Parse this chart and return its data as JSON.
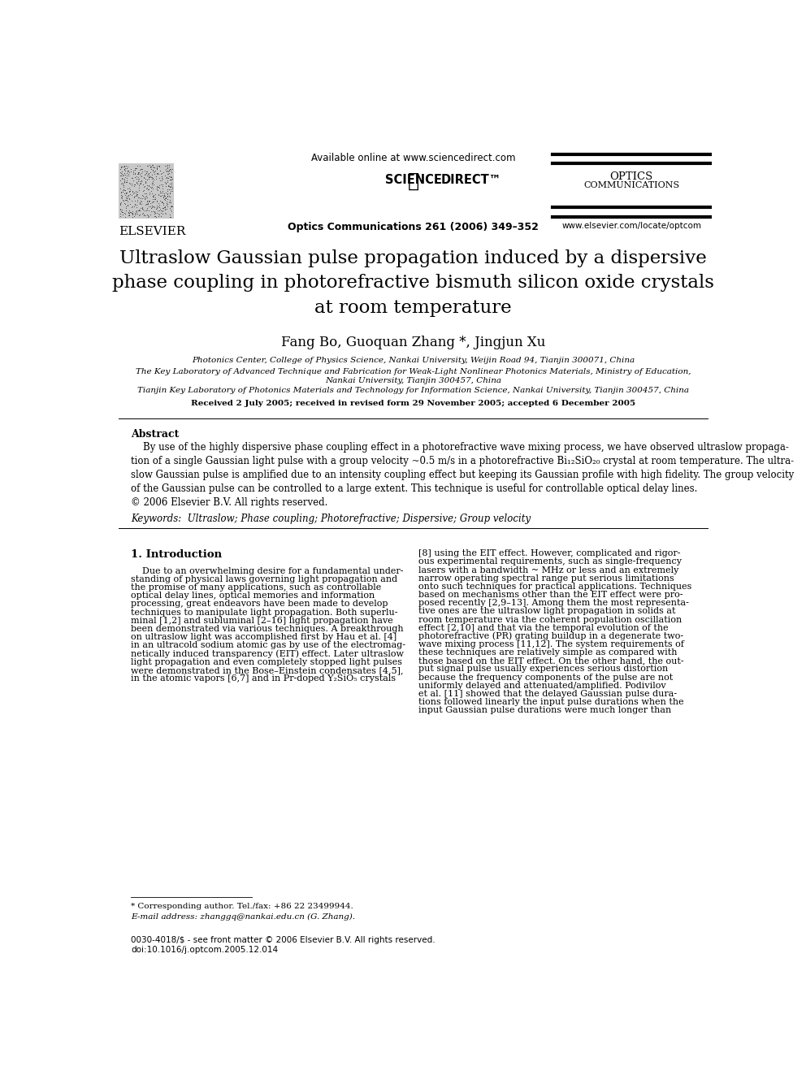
{
  "bg_color": "#ffffff",
  "title_text": "Ultraslow Gaussian pulse propagation induced by a dispersive\nphase coupling in photorefractive bismuth silicon oxide crystals\nat room temperature",
  "authors": "Fang Bo, Guoquan Zhang *, Jingjun Xu",
  "affil1": "Photonics Center, College of Physics Science, Nankai University, Weijin Road 94, Tianjin 300071, China",
  "affil2": "The Key Laboratory of Advanced Technique and Fabrication for Weak-Light Nonlinear Photonics Materials, Ministry of Education,\nNankai University, Tianjin 300457, China",
  "affil3": "Tianjin Key Laboratory of Photonics Materials and Technology for Information Science, Nankai University, Tianjin 300457, China",
  "received": "Received 2 July 2005; received in revised form 29 November 2005; accepted 6 December 2005",
  "available_online": "Available online at www.sciencedirect.com",
  "journal_ref": "Optics Communications 261 (2006) 349–352",
  "journal_name": "OPTICS\nCOMMUNICATIONS",
  "journal_url": "www.elsevier.com/locate/optcom",
  "abstract_title": "Abstract",
  "abstract_text1": "    By use of the highly dispersive phase coupling effect in a photorefractive wave mixing process, we have observed ultraslow propaga-\ntion of a single Gaussian light pulse with a group velocity ~0.5 m/s in a photorefractive Bi₁₂SiO₂₀ crystal at room temperature. The ultra-\nslow Gaussian pulse is amplified due to an intensity coupling effect but keeping its Gaussian profile with high fidelity. The group velocity\nof the Gaussian pulse can be controlled to a large extent. This technique is useful for controllable optical delay lines.\n© 2006 Elsevier B.V. All rights reserved.",
  "keywords": "Keywords:  Ultraslow; Phase coupling; Photorefractive; Dispersive; Group velocity",
  "section1_title": "1. Introduction",
  "section1_col1_lines": [
    "    Due to an overwhelming desire for a fundamental under-",
    "standing of physical laws governing light propagation and",
    "the promise of many applications, such as controllable",
    "optical delay lines, optical memories and information",
    "processing, great endeavors have been made to develop",
    "techniques to manipulate light propagation. Both superlu-",
    "minal [1,2] and subluminal [2–16] light propagation have",
    "been demonstrated via various techniques. A breakthrough",
    "on ultraslow light was accomplished first by Hau et al. [4]",
    "in an ultracold sodium atomic gas by use of the electromag-",
    "netically induced transparency (EIT) effect. Later ultraslow",
    "light propagation and even completely stopped light pulses",
    "were demonstrated in the Bose–Einstein condensates [4,5],",
    "in the atomic vapors [6,7] and in Pr-doped Y₂SiO₅ crystals"
  ],
  "section1_col2_lines": [
    "[8] using the EIT effect. However, complicated and rigor-",
    "ous experimental requirements, such as single-frequency",
    "lasers with a bandwidth ~ MHz or less and an extremely",
    "narrow operating spectral range put serious limitations",
    "onto such techniques for practical applications. Techniques",
    "based on mechanisms other than the EIT effect were pro-",
    "posed recently [2,9–13]. Among them the most representa-",
    "tive ones are the ultraslow light propagation in solids at",
    "room temperature via the coherent population oscillation",
    "effect [2,10] and that via the temporal evolution of the",
    "photorefractive (PR) grating buildup in a degenerate two-",
    "wave mixing process [11,12]. The system requirements of",
    "these techniques are relatively simple as compared with",
    "those based on the EIT effect. On the other hand, the out-",
    "put signal pulse usually experiences serious distortion",
    "because the frequency components of the pulse are not",
    "uniformly delayed and attenuated/amplified. Podivilov",
    "et al. [11] showed that the delayed Gaussian pulse dura-",
    "tions followed linearly the input pulse durations when the",
    "input Gaussian pulse durations were much longer than"
  ],
  "footnote_star": "* Corresponding author. Tel./fax: +86 22 23499944.",
  "footnote_email": "E-mail address: zhanggq@nankai.edu.cn (G. Zhang).",
  "copyright_line": "0030-4018/$ - see front matter © 2006 Elsevier B.V. All rights reserved.",
  "doi_line": "doi:10.1016/j.optcom.2005.12.014",
  "elsevier_text": "ELSEVIER",
  "science_direct": "SCIENCE   DIRECT™"
}
